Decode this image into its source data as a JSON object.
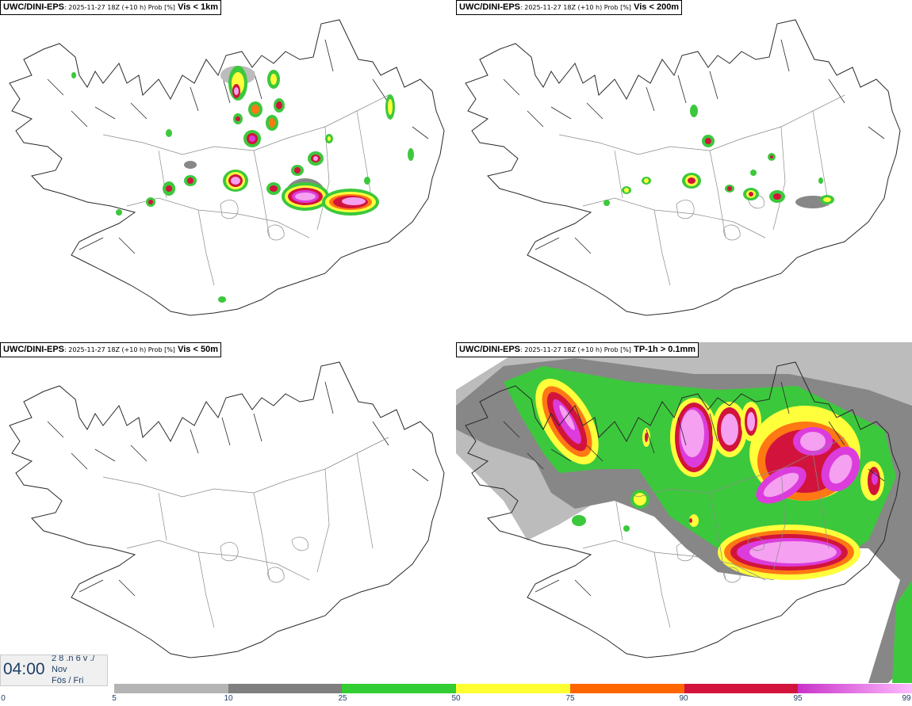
{
  "panels": [
    {
      "source": "UWC/DINI-EPS",
      "meta": ": 2025-11-27 18Z (+10 h) Prob [%]",
      "variable": "Vis < 1km"
    },
    {
      "source": "UWC/DINI-EPS",
      "meta": ": 2025-11-27 18Z (+10 h) Prob [%]",
      "variable": "Vis < 200m"
    },
    {
      "source": "UWC/DINI-EPS",
      "meta": ": 2025-11-27 18Z (+10 h) Prob [%]",
      "variable": "Vis < 50m"
    },
    {
      "source": "UWC/DINI-EPS",
      "meta": ": 2025-11-27 18Z (+10 h) Prob [%]",
      "variable": "TP-1h > 0.1mm"
    }
  ],
  "valid_time": {
    "clock": "04:00",
    "day": "2 8 .n 6 v ./",
    "month": "Nov",
    "weekday": "Fös / Fri"
  },
  "legend": {
    "ticks": [
      "0",
      "5",
      "10",
      "25",
      "50",
      "75",
      "90",
      "95",
      "99"
    ],
    "colors": [
      "#b4b4b4",
      "#7f7f7f",
      "#32cd32",
      "#ffff32",
      "#ff6600",
      "#d2143c",
      "#c832c8"
    ],
    "last_gradient_end": "#ffbbff"
  },
  "colors": {
    "gray_light": "#bcbcbc",
    "gray_dark": "#878787",
    "green": "#3cc83c",
    "yellow": "#ffff3c",
    "orange": "#ff7814",
    "red": "#d2143c",
    "magenta": "#dc3cdc",
    "pink": "#f5a0f0",
    "coast": "#2a2a2a",
    "border": "#707070"
  }
}
